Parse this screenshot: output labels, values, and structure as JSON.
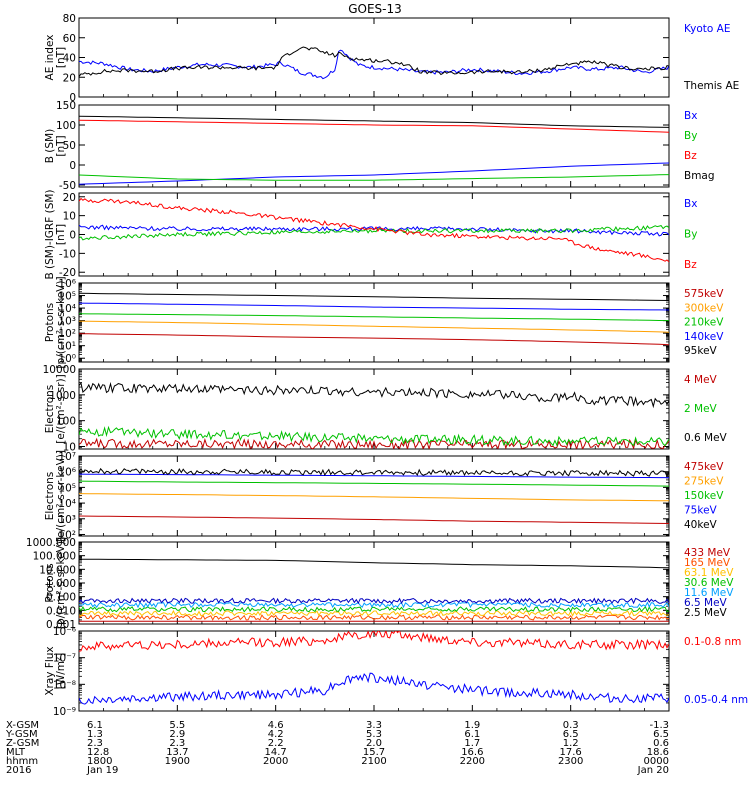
{
  "figure": {
    "title": "GOES-13"
  },
  "chart_data": [
    {
      "type": "line",
      "panel": "ae-index",
      "ylabel": [
        "AE index",
        "[nT]"
      ],
      "yscale": "linear",
      "ylim": [
        0,
        80
      ],
      "yticks": [
        0,
        20,
        40,
        60,
        80
      ],
      "yticklabels": [
        "0",
        "20",
        "40",
        "60",
        "80"
      ],
      "series": [
        {
          "name": "Kyoto AE",
          "color": "#0000ff",
          "x": [
            0,
            0.25,
            0.5,
            0.75,
            1.0,
            1.25,
            1.5,
            1.75,
            2.0,
            2.05,
            2.15,
            2.25,
            2.4,
            2.5,
            2.6,
            2.65,
            2.75,
            2.85,
            3.0,
            3.25,
            3.5,
            3.75,
            4.0,
            4.25,
            4.5,
            4.75,
            5.0,
            5.25,
            5.5,
            5.75,
            6.0
          ],
          "y": [
            36,
            34,
            28,
            26,
            30,
            33,
            32,
            30,
            33,
            35,
            30,
            25,
            22,
            20,
            28,
            50,
            40,
            32,
            30,
            28,
            25,
            25,
            28,
            26,
            24,
            26,
            30,
            28,
            30,
            25,
            30
          ],
          "noisy": true
        },
        {
          "name": "Themis AE",
          "color": "#000000",
          "x": [
            0,
            0.25,
            0.5,
            0.75,
            1.0,
            1.25,
            1.5,
            1.75,
            2.0,
            2.05,
            2.15,
            2.25,
            2.4,
            2.5,
            2.6,
            2.65,
            2.75,
            2.85,
            3.0,
            3.25,
            3.5,
            3.75,
            4.0,
            4.25,
            4.5,
            4.75,
            5.0,
            5.25,
            5.5,
            5.75,
            6.0
          ],
          "y": [
            22,
            26,
            27,
            26,
            29,
            30,
            30,
            29,
            30,
            38,
            45,
            50,
            48,
            45,
            42,
            44,
            40,
            38,
            37,
            35,
            25,
            24,
            25,
            26,
            25,
            28,
            34,
            35,
            30,
            28,
            30
          ],
          "noisy": true
        }
      ]
    },
    {
      "type": "line",
      "panel": "b-sm",
      "ylabel": [
        "B (SM)",
        "[nT]"
      ],
      "yscale": "linear",
      "ylim": [
        -55,
        150
      ],
      "yticks": [
        -50,
        0,
        50,
        100,
        150
      ],
      "yticklabels": [
        "-50",
        "0",
        "50",
        "100",
        "150"
      ],
      "series": [
        {
          "name": "Bx",
          "color": "#0000ff",
          "x": [
            0,
            1,
            2,
            3,
            4,
            5,
            6
          ],
          "y": [
            -48,
            -40,
            -30,
            -25,
            -15,
            -3,
            5
          ]
        },
        {
          "name": "By",
          "color": "#00c000",
          "x": [
            0,
            1,
            2,
            3,
            4,
            5,
            6
          ],
          "y": [
            -25,
            -35,
            -38,
            -38,
            -34,
            -30,
            -24
          ]
        },
        {
          "name": "Bz",
          "color": "#ff0000",
          "x": [
            0,
            1,
            2,
            3,
            4,
            5,
            6
          ],
          "y": [
            112,
            108,
            104,
            100,
            98,
            90,
            82
          ]
        },
        {
          "name": "Bmag",
          "color": "#000000",
          "x": [
            0,
            1,
            2,
            3,
            4,
            5,
            6
          ],
          "y": [
            122,
            118,
            114,
            110,
            106,
            98,
            94
          ]
        }
      ]
    },
    {
      "type": "line",
      "panel": "b-sm-igrf",
      "ylabel": [
        "B (SM)-IGRF (SM)",
        "[nT]"
      ],
      "yscale": "linear",
      "ylim": [
        -22,
        22
      ],
      "yticks": [
        -20,
        -10,
        0,
        10,
        20
      ],
      "yticklabels": [
        "-20",
        "-10",
        "0",
        "10",
        "20"
      ],
      "series": [
        {
          "name": "Bx",
          "color": "#0000ff",
          "x": [
            0,
            1,
            2,
            3,
            4,
            4.5,
            5,
            5.5,
            6
          ],
          "y": [
            4,
            3,
            3,
            3,
            3,
            2,
            2,
            1,
            0
          ],
          "noisy": true
        },
        {
          "name": "By",
          "color": "#00c000",
          "x": [
            0,
            1,
            2,
            3,
            4,
            4.5,
            5,
            5.5,
            6
          ],
          "y": [
            -2,
            0,
            1,
            2,
            2,
            2,
            2,
            3,
            4
          ],
          "noisy": true
        },
        {
          "name": "Bz",
          "color": "#ff0000",
          "x": [
            0,
            0.3,
            0.75,
            1,
            1.5,
            2,
            2.5,
            3,
            3.5,
            4,
            4.5,
            4.9,
            5,
            5.3,
            5.7,
            6
          ],
          "y": [
            18,
            18,
            16,
            14,
            12,
            9,
            6,
            3,
            0,
            -1,
            -2,
            -2,
            -4,
            -8,
            -11,
            -14
          ],
          "noisy": true
        }
      ]
    },
    {
      "type": "line",
      "panel": "protons-lo",
      "ylabel": [
        "Protons",
        "[p/(cm²-s-sr-keV)]"
      ],
      "yscale": "log",
      "ylim": [
        0.5,
        1000000
      ],
      "yticks": [
        1,
        10,
        100,
        1000,
        10000,
        100000,
        1000000
      ],
      "yticklabels": [
        "10⁰",
        "10¹",
        "10²",
        "10³",
        "10⁴",
        "10⁵",
        "10⁶"
      ],
      "series": [
        {
          "name": "575keV",
          "color": "#c00000",
          "x": [
            0,
            1,
            2,
            3,
            4,
            5,
            6
          ],
          "y": [
            90,
            70,
            50,
            40,
            30,
            20,
            12
          ]
        },
        {
          "name": "300keV",
          "color": "#ffa000",
          "x": [
            0,
            1,
            2,
            3,
            4,
            5,
            6
          ],
          "y": [
            900,
            700,
            500,
            350,
            250,
            180,
            120
          ]
        },
        {
          "name": "210keV",
          "color": "#00c000",
          "x": [
            0,
            1,
            2,
            3,
            4,
            5,
            6
          ],
          "y": [
            3500,
            3000,
            2500,
            2000,
            1600,
            1300,
            1000
          ]
        },
        {
          "name": "140keV",
          "color": "#0000ff",
          "x": [
            0,
            1,
            2,
            3,
            4,
            5,
            6
          ],
          "y": [
            25000,
            20000,
            16000,
            12000,
            10000,
            8000,
            7000
          ]
        },
        {
          "name": "95keV",
          "color": "#000000",
          "x": [
            0,
            1,
            2,
            3,
            4,
            5,
            6
          ],
          "y": [
            150000,
            120000,
            100000,
            80000,
            60000,
            50000,
            40000
          ]
        }
      ]
    },
    {
      "type": "line",
      "panel": "electrons-mev",
      "ylabel": [
        "Electrons",
        "[e/(cm²-s-sr)]"
      ],
      "yscale": "log",
      "ylim": [
        8,
        10000
      ],
      "yticks": [
        10,
        100,
        1000,
        10000
      ],
      "yticklabels": [
        "10",
        "100",
        "1000",
        "10000"
      ],
      "series": [
        {
          "name": "4 MeV",
          "color": "#c00000",
          "x": [
            0,
            1,
            2,
            3,
            4,
            5,
            6
          ],
          "y": [
            13,
            13,
            12,
            12,
            12,
            12,
            12
          ],
          "noisy": true
        },
        {
          "name": "2 MeV",
          "color": "#00c000",
          "x": [
            0,
            1,
            2,
            3,
            4,
            5,
            6
          ],
          "y": [
            40,
            30,
            25,
            20,
            18,
            16,
            15
          ],
          "noisy": true
        },
        {
          "name": "0.6 MeV",
          "color": "#000000",
          "x": [
            0,
            1,
            2,
            3,
            4,
            4.5,
            4.8,
            5,
            5.2,
            5.5,
            6
          ],
          "y": [
            1900,
            1700,
            1500,
            1300,
            1100,
            950,
            700,
            900,
            600,
            600,
            480
          ],
          "noisy": true
        }
      ]
    },
    {
      "type": "line",
      "panel": "electrons-kev",
      "ylabel": [
        "Electrons",
        "[e/(cm²-s-sr-keV)]"
      ],
      "yscale": "log",
      "ylim": [
        80,
        10000000
      ],
      "yticks": [
        100,
        1000,
        10000,
        100000,
        1000000,
        10000000
      ],
      "yticklabels": [
        "10²",
        "10³",
        "10⁴",
        "10⁵",
        "10⁶",
        "10⁷"
      ],
      "series": [
        {
          "name": "475keV",
          "color": "#c00000",
          "x": [
            0,
            1,
            2,
            3,
            4,
            5,
            6
          ],
          "y": [
            1500,
            1300,
            1100,
            900,
            700,
            600,
            500
          ]
        },
        {
          "name": "275keV",
          "color": "#ffa000",
          "x": [
            0,
            1,
            2,
            3,
            4,
            5,
            6
          ],
          "y": [
            40000,
            35000,
            30000,
            25000,
            20000,
            16000,
            14000
          ]
        },
        {
          "name": "150keV",
          "color": "#00c000",
          "x": [
            0,
            1,
            2,
            3,
            4,
            5,
            6
          ],
          "y": [
            250000,
            220000,
            200000,
            180000,
            160000,
            140000,
            120000
          ]
        },
        {
          "name": "75keV",
          "color": "#0000ff",
          "x": [
            0,
            1,
            2,
            3,
            4,
            5,
            6
          ],
          "y": [
            700000,
            650000,
            600000,
            550000,
            500000,
            450000,
            420000
          ]
        },
        {
          "name": "40keV",
          "color": "#000000",
          "x": [
            0,
            1,
            2,
            3,
            4,
            5,
            6
          ],
          "y": [
            1100000,
            1000000,
            950000,
            900000,
            850000,
            800000,
            750000
          ],
          "noisy": true
        }
      ]
    },
    {
      "type": "line",
      "panel": "protons-mev",
      "ylabel": [
        "Protons",
        "[p/(cm²-s-sr-keV)]"
      ],
      "yscale": "log",
      "ylim": [
        0.001,
        1000
      ],
      "yticks": [
        0.001,
        0.01,
        0.1,
        1,
        10,
        100,
        1000
      ],
      "yticklabels": [
        "0.001",
        "0.010",
        "0.100",
        "1.000",
        "10.000",
        "100.000",
        "1000.000"
      ],
      "series": [
        {
          "name": "433 MeV",
          "color": "#c00000",
          "x": [
            0,
            1,
            2,
            3,
            4,
            5,
            6
          ],
          "y": [
            0.0016,
            0.0016,
            0.0016,
            0.0016,
            0.0016,
            0.0016,
            0.0016
          ]
        },
        {
          "name": "165 MeV",
          "color": "#ff5000",
          "x": [
            0,
            1,
            2,
            3,
            4,
            5,
            6
          ],
          "y": [
            0.003,
            0.003,
            0.003,
            0.003,
            0.003,
            0.003,
            0.003
          ],
          "noisy": true
        },
        {
          "name": "63.1 MeV",
          "color": "#ffc000",
          "x": [
            0,
            1,
            2,
            3,
            4,
            5,
            6
          ],
          "y": [
            0.006,
            0.006,
            0.006,
            0.006,
            0.006,
            0.006,
            0.006
          ],
          "noisy": true
        },
        {
          "name": "30.6 MeV",
          "color": "#00c000",
          "x": [
            0,
            1,
            2,
            3,
            4,
            5,
            6
          ],
          "y": [
            0.012,
            0.012,
            0.012,
            0.012,
            0.012,
            0.012,
            0.012
          ],
          "noisy": true
        },
        {
          "name": "11.6 MeV",
          "color": "#00a0ff",
          "x": [
            0,
            1,
            2,
            3,
            4,
            5,
            6
          ],
          "y": [
            0.025,
            0.025,
            0.025,
            0.025,
            0.025,
            0.025,
            0.025
          ],
          "noisy": true
        },
        {
          "name": "6.5 MeV",
          "color": "#0000c0",
          "x": [
            0,
            1,
            2,
            3,
            4,
            5,
            6
          ],
          "y": [
            0.05,
            0.05,
            0.05,
            0.05,
            0.05,
            0.05,
            0.05
          ],
          "noisy": true
        },
        {
          "name": "2.5 MeV",
          "color": "#000000",
          "x": [
            0,
            1,
            2,
            3,
            4,
            5,
            6
          ],
          "y": [
            55,
            50,
            45,
            30,
            22,
            18,
            13
          ]
        }
      ]
    },
    {
      "type": "line",
      "panel": "xray-flux",
      "ylabel": [
        "Xray Flux",
        "[W/m²]"
      ],
      "yscale": "log",
      "ylim": [
        1e-09,
        1e-06
      ],
      "yticks": [
        1e-09,
        1e-08,
        1e-07,
        1e-06
      ],
      "yticklabels": [
        "10⁻⁹",
        "10⁻⁸",
        "10⁻⁷",
        "10⁻⁶"
      ],
      "series": [
        {
          "name": "0.1-0.8 nm",
          "color": "#ff0000",
          "x": [
            0,
            0.5,
            1,
            1.5,
            2,
            2.5,
            2.9,
            3.2,
            3.6,
            4,
            4.5,
            5,
            5.5,
            6
          ],
          "y": [
            2.5e-07,
            3e-07,
            3e-07,
            3.5e-07,
            3.8e-07,
            4.5e-07,
            7.5e-07,
            7.5e-07,
            5.5e-07,
            4e-07,
            3.5e-07,
            3.2e-07,
            3e-07,
            3e-07
          ],
          "noisy": true
        },
        {
          "name": "0.05-0.4 nm",
          "color": "#0000ff",
          "x": [
            0,
            0.5,
            1,
            1.5,
            2,
            2.5,
            2.85,
            3.1,
            3.5,
            4,
            4.5,
            5,
            5.5,
            6
          ],
          "y": [
            2.5e-09,
            3e-09,
            3.5e-09,
            4e-09,
            4e-09,
            6e-09,
            2e-08,
            1.6e-08,
            1e-08,
            6e-09,
            5e-09,
            4e-09,
            3e-09,
            3e-09
          ],
          "noisy": true
        }
      ]
    }
  ],
  "xaxis": {
    "row_labels": [
      "X-GSM",
      "Y-GSM",
      "Z-GSM",
      "MLT",
      "hhmm",
      "2016"
    ],
    "columns": [
      {
        "x": 0,
        "values": [
          "6.1",
          "1.3",
          "2.3",
          "12.8",
          "1800",
          "Jan 19"
        ]
      },
      {
        "x": 1,
        "values": [
          "5.5",
          "2.9",
          "2.3",
          "13.7",
          "1900",
          ""
        ]
      },
      {
        "x": 2,
        "values": [
          "4.6",
          "4.2",
          "2.2",
          "14.7",
          "2000",
          ""
        ]
      },
      {
        "x": 3,
        "values": [
          "3.3",
          "5.3",
          "2.0",
          "15.7",
          "2100",
          ""
        ]
      },
      {
        "x": 4,
        "values": [
          "1.9",
          "6.1",
          "1.7",
          "16.6",
          "2200",
          ""
        ]
      },
      {
        "x": 5,
        "values": [
          "0.3",
          "6.5",
          "1.2",
          "17.6",
          "2300",
          ""
        ]
      },
      {
        "x": 6,
        "values": [
          "-1.3",
          "6.5",
          "0.6",
          "18.6",
          "0000",
          "Jan 20"
        ]
      }
    ]
  }
}
